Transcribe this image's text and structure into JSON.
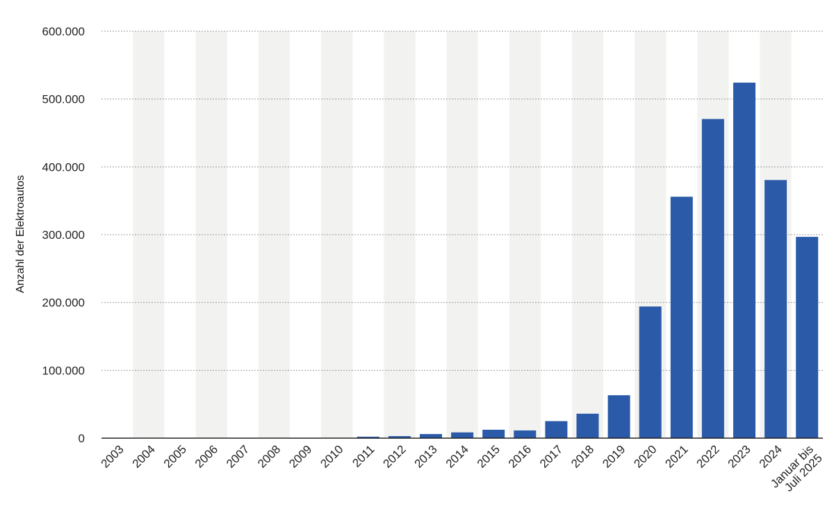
{
  "chart_data": {
    "type": "bar",
    "title": "",
    "xlabel": "",
    "ylabel": "Anzahl der Elektroautos",
    "categories": [
      "2003",
      "2004",
      "2005",
      "2006",
      "2007",
      "2008",
      "2009",
      "2010",
      "2011",
      "2012",
      "2013",
      "2014",
      "2015",
      "2016",
      "2017",
      "2018",
      "2019",
      "2020",
      "2021",
      "2022",
      "2023",
      "2024",
      "Januar bis Juli 2025"
    ],
    "values": [
      0,
      19,
      19,
      98,
      8,
      36,
      162,
      541,
      2154,
      2956,
      6051,
      8522,
      12363,
      11410,
      25056,
      36062,
      63281,
      194163,
      355961,
      470559,
      524219,
      380609,
      296870
    ],
    "ylim": [
      0,
      600000
    ],
    "yticks": [
      0,
      100000,
      200000,
      300000,
      400000,
      500000,
      600000
    ],
    "ytick_labels": [
      "0",
      "100.000",
      "200.000",
      "300.000",
      "400.000",
      "500.000",
      "600.000"
    ],
    "grid": true,
    "legend": "none",
    "colors": {
      "bar": "#2b5aa8",
      "band": "#f2f2f0",
      "grid": "#9a9a9a",
      "axis": "#222222"
    }
  }
}
